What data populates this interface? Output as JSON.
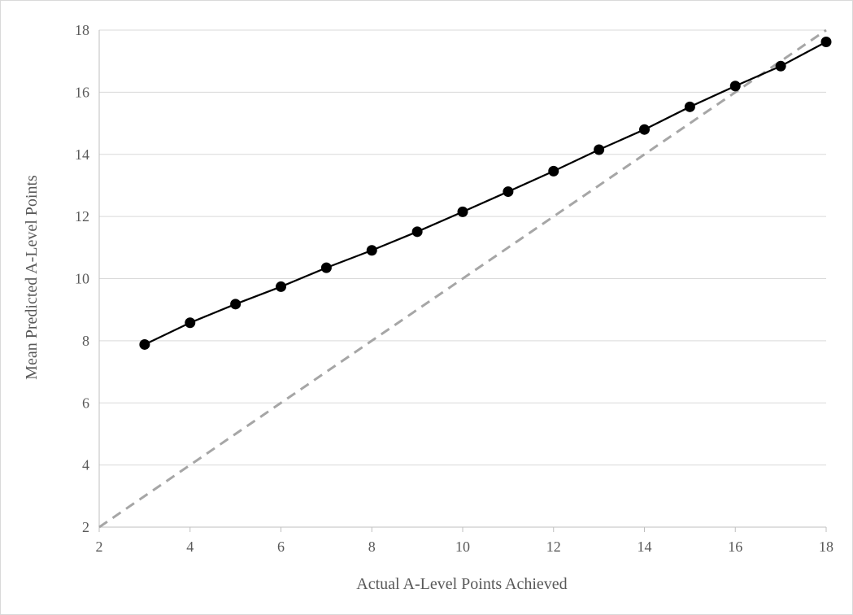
{
  "chart_data": {
    "type": "line",
    "xlabel": "Actual A-Level Points Achieved",
    "ylabel": "Mean Predicted A-Level Points",
    "xlim": [
      2,
      18
    ],
    "ylim": [
      2,
      18
    ],
    "x_ticks": [
      2,
      4,
      6,
      8,
      10,
      12,
      14,
      16,
      18
    ],
    "y_ticks": [
      2,
      4,
      6,
      8,
      10,
      12,
      14,
      16,
      18
    ],
    "grid": "horizontal",
    "legend": "none",
    "series": [
      {
        "style": "solid-black-with-markers",
        "color": "#000000",
        "x": [
          3,
          4,
          5,
          6,
          7,
          8,
          9,
          10,
          11,
          12,
          13,
          14,
          15,
          16,
          17,
          18
        ],
        "y": [
          7.88,
          8.58,
          9.18,
          9.74,
          10.35,
          10.91,
          11.51,
          12.15,
          12.8,
          13.46,
          14.15,
          14.8,
          15.53,
          16.2,
          16.84,
          17.62
        ]
      },
      {
        "style": "dashed-grey-reference",
        "color": "#a6a6a6",
        "x": [
          2,
          18
        ],
        "y": [
          2,
          18
        ]
      }
    ]
  }
}
